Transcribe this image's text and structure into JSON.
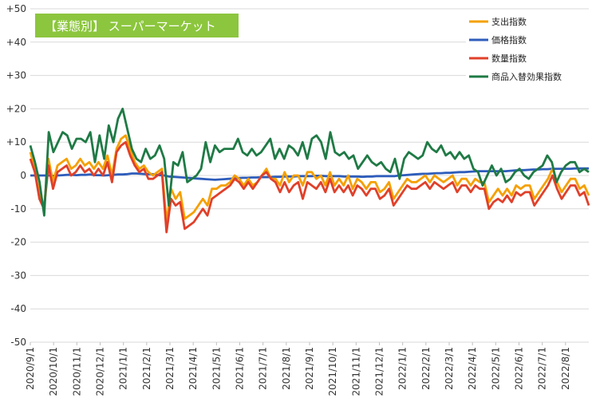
{
  "chart_data": {
    "type": "line",
    "title": "【業態別】 スーパーマーケット",
    "title_bg_color": "#8cc63e",
    "xlabel": "",
    "ylabel": "",
    "ylim": [
      -50,
      50
    ],
    "y_ticks": [
      {
        "value": 50,
        "label": "+50"
      },
      {
        "value": 40,
        "label": "+40"
      },
      {
        "value": 30,
        "label": "+30"
      },
      {
        "value": 20,
        "label": "+20"
      },
      {
        "value": 10,
        "label": "+10"
      },
      {
        "value": 0,
        "label": "0"
      },
      {
        "value": -10,
        "label": "-10"
      },
      {
        "value": -20,
        "label": "-20"
      },
      {
        "value": -30,
        "label": "-30"
      },
      {
        "value": -40,
        "label": "-40"
      },
      {
        "value": -50,
        "label": "-50"
      }
    ],
    "x_tick_labels": [
      "2020/9/1",
      "2020/10/1",
      "2020/11/1",
      "2020/12/1",
      "2021/1/1",
      "2021/2/1",
      "2021/3/1",
      "2021/4/1",
      "2021/5/1",
      "2021/6/1",
      "2021/7/1",
      "2021/8/1",
      "2021/9/1",
      "2021/10/1",
      "2021/11/1",
      "2021/12/1",
      "2022/1/1",
      "2022/2/1",
      "2022/3/1",
      "2022/4/1",
      "2022/5/1",
      "2022/6/1",
      "2022/7/1",
      "2022/8/1"
    ],
    "grid": "horizontal",
    "legend_position": "top-right",
    "series": [
      {
        "name": "支出指数",
        "color": "#f5a000",
        "values": [
          7,
          2,
          -6,
          -10,
          5,
          -2,
          3,
          4,
          5,
          2,
          3,
          5,
          3,
          4,
          2,
          4,
          2,
          6,
          0,
          8,
          11,
          12,
          8,
          4,
          2,
          3,
          1,
          0,
          1,
          2,
          -14,
          -4,
          -7,
          -5,
          -13,
          -12,
          -11,
          -9,
          -7,
          -9,
          -4,
          -4,
          -3,
          -3,
          -2,
          0,
          -1,
          -3,
          -1,
          -3,
          -2,
          0,
          2,
          -1,
          -1,
          -3,
          1,
          -2,
          0,
          0,
          -3,
          1,
          1,
          -1,
          0,
          -3,
          1,
          -3,
          -1,
          -3,
          0,
          -4,
          -1,
          -2,
          -4,
          -2,
          -2,
          -5,
          -4,
          -2,
          -7,
          -5,
          -3,
          -1,
          -2,
          -2,
          -1,
          0,
          -2,
          0,
          -1,
          -2,
          -1,
          0,
          -3,
          -1,
          -1,
          -3,
          -1,
          -2,
          -2,
          -8,
          -6,
          -4,
          -6,
          -4,
          -6,
          -3,
          -4,
          -3,
          -3,
          -7,
          -5,
          -3,
          -1,
          2,
          -2,
          -5,
          -3,
          -1,
          -1,
          -4,
          -3,
          -6
        ]
      },
      {
        "name": "価格指数",
        "color": "#2e5dbb",
        "values": [
          0,
          0,
          0,
          0,
          0,
          -0.1,
          0,
          0.1,
          0.2,
          0.2,
          0.1,
          0.2,
          0.2,
          0.3,
          0.1,
          0.1,
          0,
          0.1,
          0.2,
          0.3,
          0.3,
          0.4,
          0.6,
          0.6,
          0.5,
          0.4,
          0.4,
          0.3,
          0.1,
          0,
          -0.3,
          -0.4,
          -0.5,
          -0.6,
          -0.7,
          -0.8,
          -0.9,
          -1.0,
          -1.1,
          -1.2,
          -1.3,
          -1.2,
          -1.1,
          -1.0,
          -0.9,
          -0.8,
          -0.7,
          -0.7,
          -0.6,
          -0.6,
          -0.5,
          -0.5,
          -0.5,
          -0.4,
          -0.4,
          -0.3,
          -0.3,
          -0.3,
          -0.2,
          -0.2,
          -0.2,
          -0.2,
          -0.1,
          -0.1,
          -0.2,
          -0.2,
          -0.2,
          -0.2,
          -0.3,
          -0.3,
          -0.3,
          -0.3,
          -0.4,
          -0.3,
          -0.3,
          -0.2,
          -0.2,
          -0.2,
          -0.2,
          -0.2,
          0,
          0.1,
          0.2,
          0.3,
          0.4,
          0.5,
          0.5,
          0.6,
          0.7,
          0.7,
          0.8,
          0.8,
          0.9,
          1.0,
          1.0,
          1.1,
          1.2,
          1.3,
          1.3,
          1.3,
          1.3,
          1.3,
          1.3,
          1.3,
          1.4,
          1.5,
          1.6,
          1.6,
          1.7,
          1.8,
          1.8,
          1.9,
          1.9,
          2.0,
          2.0,
          2.0,
          2.0,
          2.0,
          2.1,
          2.1,
          2.1,
          2.1
        ]
      },
      {
        "name": "数量指数",
        "color": "#e0402a",
        "values": [
          5,
          1,
          -7,
          -10,
          3,
          -4,
          1,
          2,
          3,
          0,
          1,
          3,
          1,
          2,
          0,
          2,
          0,
          4,
          -2,
          7,
          9,
          10,
          6,
          3,
          1,
          2,
          -1,
          -1,
          0,
          1,
          -17,
          -7,
          -9,
          -8,
          -16,
          -15,
          -14,
          -12,
          -10,
          -12,
          -7,
          -6,
          -5,
          -4,
          -3,
          -1,
          -2,
          -4,
          -2,
          -4,
          -2,
          0,
          1,
          -1,
          -2,
          -5,
          -2,
          -5,
          -3,
          -2,
          -7,
          -2,
          -3,
          -4,
          -2,
          -5,
          -1,
          -5,
          -3,
          -5,
          -3,
          -6,
          -3,
          -4,
          -6,
          -4,
          -4,
          -7,
          -6,
          -4,
          -9,
          -7,
          -5,
          -3,
          -4,
          -4,
          -3,
          -2,
          -4,
          -2,
          -3,
          -4,
          -3,
          -2,
          -5,
          -3,
          -3,
          -5,
          -3,
          -4,
          -4,
          -10,
          -8,
          -7,
          -8,
          -6,
          -8,
          -5,
          -6,
          -5,
          -5,
          -9,
          -7,
          -5,
          -3,
          0,
          -4,
          -7,
          -5,
          -3,
          -3,
          -6,
          -5,
          -9
        ]
      },
      {
        "name": "商品入替効果指数",
        "color": "#1f7a45",
        "values": [
          9,
          4,
          -2,
          -12,
          13,
          7,
          10,
          13,
          12,
          8,
          11,
          11,
          10,
          13,
          4,
          12,
          5,
          15,
          10,
          17,
          20,
          14,
          8,
          5,
          4,
          8,
          5,
          6,
          9,
          5,
          -9,
          4,
          3,
          7,
          -2,
          -1,
          0,
          2,
          10,
          4,
          9,
          7,
          8,
          8,
          8,
          11,
          7,
          6,
          8,
          6,
          7,
          9,
          11,
          5,
          8,
          5,
          9,
          8,
          6,
          10,
          5,
          11,
          12,
          10,
          5,
          13,
          7,
          6,
          7,
          5,
          6,
          2,
          4,
          6,
          4,
          3,
          4,
          2,
          1,
          5,
          -1,
          5,
          7,
          6,
          5,
          6,
          10,
          8,
          7,
          9,
          6,
          7,
          5,
          7,
          5,
          6,
          2,
          1,
          -3,
          0,
          3,
          0,
          2,
          -2,
          -1,
          1,
          2,
          0,
          -1,
          1,
          2,
          3,
          6,
          4,
          -2,
          1,
          3,
          4,
          4,
          1,
          2,
          1
        ]
      }
    ]
  }
}
